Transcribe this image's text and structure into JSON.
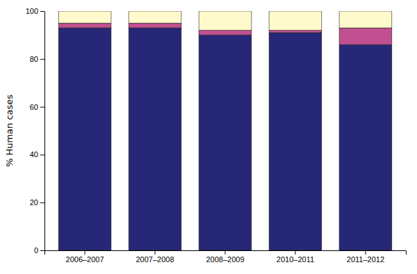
{
  "chart_data": {
    "type": "bar",
    "stacked": true,
    "categories": [
      "2006–2007",
      "2007–2008",
      "2008–2009",
      "2010–2011",
      "2011–2012"
    ],
    "series": [
      {
        "color": "#272777",
        "values": [
          93,
          93,
          90,
          91,
          86
        ]
      },
      {
        "color": "#C05090",
        "values": [
          2,
          2,
          2,
          1,
          7
        ]
      },
      {
        "color": "#FFFACC",
        "values": [
          5,
          5,
          8,
          8,
          7
        ]
      }
    ],
    "ylabel": "% Human cases",
    "ylim": [
      0,
      100
    ],
    "yticks": [
      0,
      20,
      40,
      60,
      80,
      100
    ],
    "grid": false
  }
}
